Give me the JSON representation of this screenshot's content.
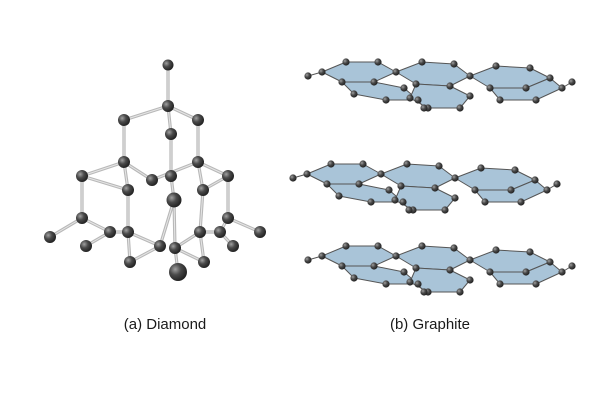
{
  "captions": {
    "diamond": "(a) Diamond",
    "graphite": "(b) Graphite"
  },
  "colors": {
    "atom": "#3a3a3a",
    "atom_highlight": "#9a9a9a",
    "bond": "#b8b8b8",
    "sheet_fill": "#a9c4d8",
    "sheet_edge": "#555555"
  },
  "graphite": {
    "layer_count": 3,
    "hexagons_per_layer": 6
  }
}
